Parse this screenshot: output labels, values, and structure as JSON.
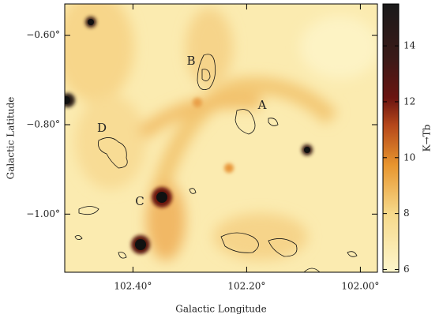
{
  "chart_data": {
    "type": "image",
    "xlabel": "Galactic Longitude",
    "ylabel": "Galactic Latitude",
    "xlim": [
      102.52,
      101.97
    ],
    "ylim": [
      -1.13,
      -0.53
    ],
    "xticks": [
      {
        "value": 102.4,
        "label": "102.40°"
      },
      {
        "value": 102.2,
        "label": "102.20°"
      },
      {
        "value": 102.0,
        "label": "102.00°"
      }
    ],
    "yticks": [
      {
        "value": -0.6,
        "label": "−0.60°"
      },
      {
        "value": -0.8,
        "label": "−0.80°"
      },
      {
        "value": -1.0,
        "label": "−1.00°"
      }
    ],
    "colorbar": {
      "label": "K→Tb",
      "clim": [
        5.9,
        15.5
      ],
      "ticks": [
        6,
        8,
        10,
        12,
        14
      ]
    },
    "annotations": [
      "A",
      "B",
      "C",
      "D"
    ]
  }
}
